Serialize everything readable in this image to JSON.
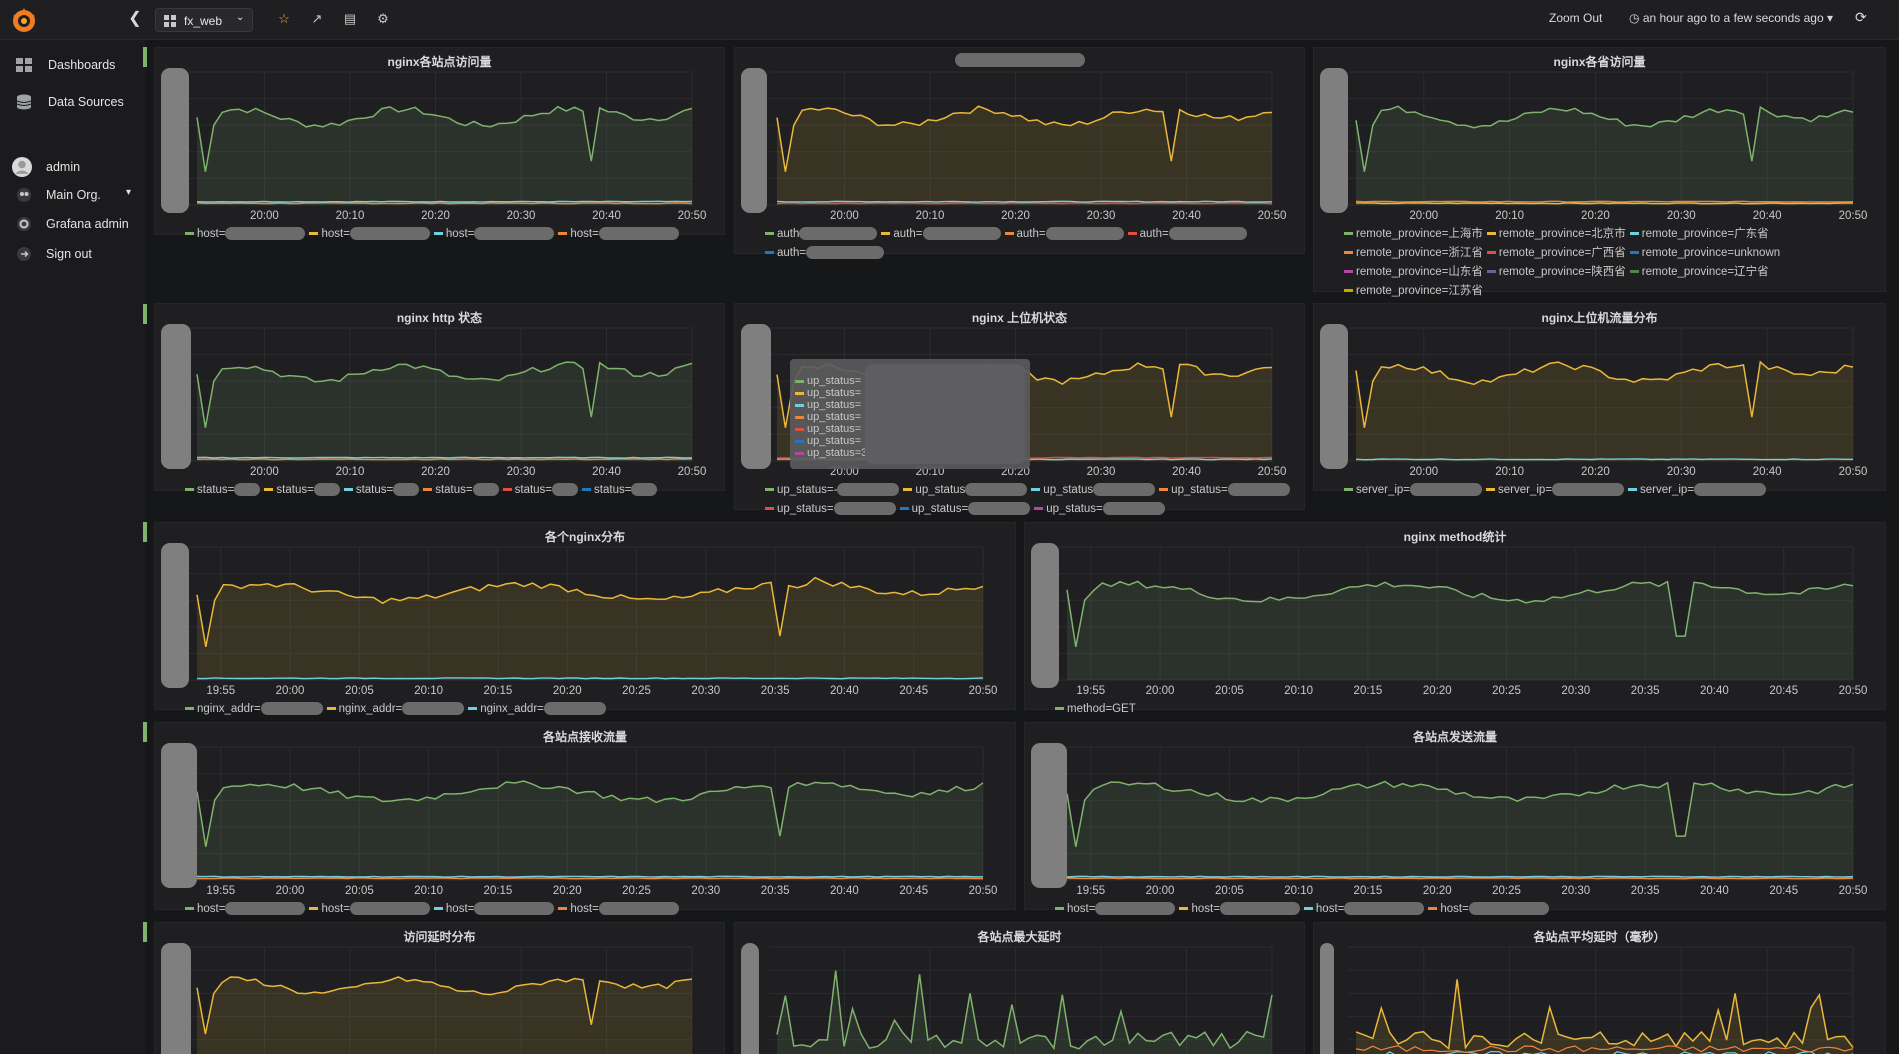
{
  "topbar": {
    "dashboard_name": "fx_web",
    "zoom_out": "Zoom Out",
    "time_range": "an hour ago to a few seconds ago",
    "icons": [
      "grafana-logo-icon",
      "chevron-left-icon",
      "grid-icon",
      "star-icon",
      "share-icon",
      "save-icon",
      "gear-icon",
      "refresh-icon"
    ]
  },
  "sidebar": {
    "items": [
      {
        "label": "Dashboards",
        "icon": "dashboards-icon"
      },
      {
        "label": "Data Sources",
        "icon": "database-icon"
      }
    ],
    "user": {
      "label": "admin"
    },
    "org": {
      "label": "Main Org."
    },
    "grafana_admin": {
      "label": "Grafana admin"
    },
    "sign_out": {
      "label": "Sign out"
    }
  },
  "colors": {
    "green": "#7eb26d",
    "yellow": "#eab839",
    "cyan": "#6ed0e0",
    "orange": "#ef843c",
    "red": "#e24d42",
    "blue": "#1f78c1",
    "pink": "#ba43a9",
    "purple": "#705da0"
  },
  "axis": {
    "short": [
      "20:00",
      "20:10",
      "20:20",
      "20:30",
      "20:40",
      "20:50"
    ],
    "long": [
      "19:55",
      "20:00",
      "20:05",
      "20:10",
      "20:15",
      "20:20",
      "20:25",
      "20:30",
      "20:35",
      "20:40",
      "20:45",
      "20:50"
    ]
  },
  "panels": {
    "p1": {
      "title": "nginx各站点访问量",
      "legend": [
        {
          "label": "host=",
          "color": "#7eb26d"
        },
        {
          "label": "host=",
          "color": "#eab839"
        },
        {
          "label": "host=",
          "color": "#6ed0e0"
        },
        {
          "label": "host=",
          "color": "#ef843c"
        }
      ]
    },
    "p2": {
      "title": "",
      "legend": [
        {
          "label": "auth",
          "color": "#7eb26d"
        },
        {
          "label": "auth=",
          "color": "#eab839"
        },
        {
          "label": "auth=",
          "color": "#ef843c"
        },
        {
          "label": "auth=",
          "color": "#e24d42"
        },
        {
          "label": "auth=",
          "color": "#1f78c1"
        }
      ]
    },
    "p3": {
      "title": "nginx各省访问量",
      "legend": [
        {
          "label": "remote_province=上海市",
          "color": "#7eb26d"
        },
        {
          "label": "remote_province=北京市",
          "color": "#eab839"
        },
        {
          "label": "remote_province=广东省",
          "color": "#6ed0e0"
        },
        {
          "label": "remote_province=浙江省",
          "color": "#ef843c"
        },
        {
          "label": "remote_province=广西省",
          "color": "#e24d42"
        },
        {
          "label": "remote_province=unknown",
          "color": "#1f78c1"
        },
        {
          "label": "remote_province=山东省",
          "color": "#ba43a9"
        },
        {
          "label": "remote_province=陕西省",
          "color": "#705da0"
        },
        {
          "label": "remote_province=辽宁省",
          "color": "#508642"
        },
        {
          "label": "remote_province=江苏省",
          "color": "#cca300"
        }
      ]
    },
    "p4": {
      "title": "nginx http 状态",
      "legend": [
        {
          "label": "status=",
          "color": "#7eb26d"
        },
        {
          "label": "status=",
          "color": "#eab839"
        },
        {
          "label": "status=",
          "color": "#6ed0e0"
        },
        {
          "label": "status=",
          "color": "#ef843c"
        },
        {
          "label": "status=",
          "color": "#e24d42"
        },
        {
          "label": "status=",
          "color": "#1f78c1"
        }
      ]
    },
    "p5": {
      "title": "nginx 上位机状态",
      "legend": [
        {
          "label": "up_status=-",
          "color": "#7eb26d"
        },
        {
          "label": "up_status",
          "color": "#eab839"
        },
        {
          "label": "up_status",
          "color": "#6ed0e0"
        },
        {
          "label": "up_status=",
          "color": "#ef843c"
        },
        {
          "label": "up_status=",
          "color": "#e24d42"
        },
        {
          "label": "up_status=",
          "color": "#1f78c1"
        },
        {
          "label": "up_status=",
          "color": "#ba43a9"
        }
      ],
      "tooltip": [
        "up_status=",
        "up_status=",
        "up_status=",
        "up_status=",
        "up_status=",
        "up_status=",
        "up_status=3"
      ]
    },
    "p6": {
      "title": "nginx上位机流量分布",
      "legend": [
        {
          "label": "server_ip=",
          "color": "#7eb26d"
        },
        {
          "label": "server_ip=",
          "color": "#eab839"
        },
        {
          "label": "server_ip=",
          "color": "#6ed0e0"
        }
      ]
    },
    "p7": {
      "title": "各个nginx分布",
      "legend": [
        {
          "label": "nginx_addr=",
          "color": "#7eb26d"
        },
        {
          "label": "nginx_addr=",
          "color": "#eab839"
        },
        {
          "label": "nginx_addr=",
          "color": "#6ed0e0"
        }
      ]
    },
    "p8": {
      "title": "nginx method统计",
      "legend": [
        {
          "label": "method=GET",
          "color": "#7eb26d"
        }
      ]
    },
    "p9": {
      "title": "各站点接收流量",
      "legend": [
        {
          "label": "host=",
          "color": "#7eb26d"
        },
        {
          "label": "host=",
          "color": "#eab839"
        },
        {
          "label": "host=",
          "color": "#6ed0e0"
        },
        {
          "label": "host=",
          "color": "#ef843c"
        }
      ]
    },
    "p10": {
      "title": "各站点发送流量",
      "legend": [
        {
          "label": "host=",
          "color": "#7eb26d"
        },
        {
          "label": "host=",
          "color": "#eab839"
        },
        {
          "label": "host=",
          "color": "#6ed0e0"
        },
        {
          "label": "host=",
          "color": "#ef843c"
        }
      ]
    },
    "p11": {
      "title": "访问延时分布",
      "legend": []
    },
    "p12": {
      "title": "各站点最大延时",
      "legend": []
    },
    "p13": {
      "title": "各站点平均延时（毫秒）",
      "legend": []
    }
  }
}
